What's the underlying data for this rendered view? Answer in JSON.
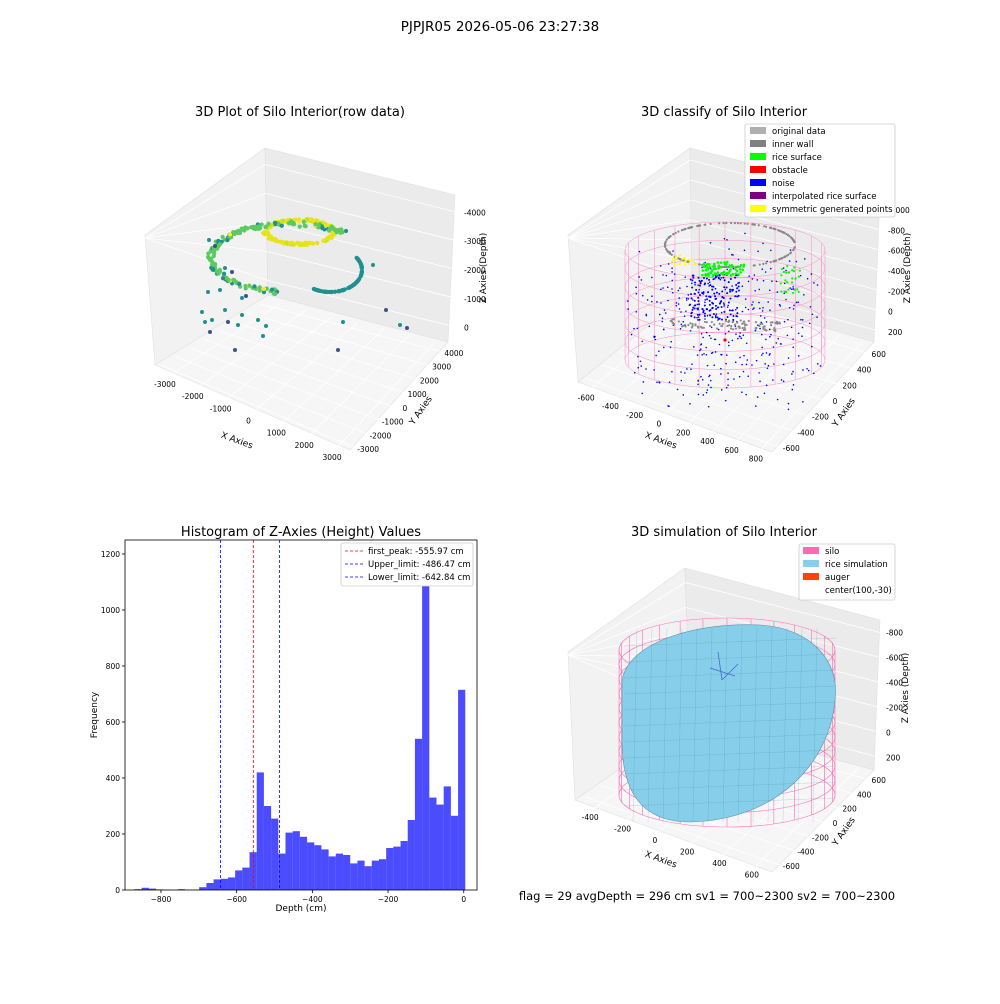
{
  "figure": {
    "suptitle": "PJPJR05 2026-05-06 23:27:38",
    "footer": "flag = 29   avgDepth = 296 cm   sv1 = 700~2300   sv2 = 700~2300"
  },
  "chart_data": [
    {
      "type": "scatter3d",
      "title": "3D Plot of Silo Interior(row data)",
      "xlabel": "X Axies",
      "ylabel": "Y Axies",
      "zlabel": "Z Axies (Depth)",
      "xticks": [
        "-3000",
        "-2000",
        "-1000",
        "0",
        "1000",
        "2000",
        "3000"
      ],
      "yticks": [
        "-3000",
        "-2000",
        "-1000",
        "0",
        "1000",
        "2000",
        "3000",
        "4000"
      ],
      "zticks": [
        "0",
        "-1000",
        "-2000",
        "-3000",
        "-4000"
      ],
      "xlim": [
        -3500,
        3200
      ],
      "ylim": [
        -3500,
        4200
      ],
      "zlim": [
        -4600,
        200
      ],
      "colormap": "viridis",
      "grid": true
    },
    {
      "type": "scatter3d",
      "title": "3D classify of Silo Interior",
      "xlabel": "X Axies",
      "ylabel": "Y Axies",
      "zlabel": "Z Axies (Depth)",
      "xticks": [
        "-600",
        "-400",
        "-200",
        "0",
        "200",
        "400",
        "600",
        "800"
      ],
      "yticks": [
        "-600",
        "-400",
        "-200",
        "0",
        "200",
        "400",
        "600"
      ],
      "zticks": [
        "200",
        "0",
        "-200",
        "-400",
        "-600",
        "-800",
        "-1000"
      ],
      "legend_position": "top-right",
      "legend": [
        {
          "label": "original data",
          "color": "#b0b0b0"
        },
        {
          "label": "inner wall",
          "color": "#808080"
        },
        {
          "label": "rice surface",
          "color": "#00ff00"
        },
        {
          "label": "obstacle",
          "color": "#ff0000"
        },
        {
          "label": "noise",
          "color": "#0000ff"
        },
        {
          "label": "interpolated rice surface",
          "color": "#800080"
        },
        {
          "label": "symmetric generated points",
          "color": "#ffff00"
        }
      ],
      "grid": true
    },
    {
      "type": "bar",
      "title": "Histogram of Z-Axies (Height) Values",
      "xlabel": "Depth (cm)",
      "ylabel": "Frequency",
      "xlim": [
        -895,
        35
      ],
      "ylim": [
        0,
        1250
      ],
      "xticks": [
        -800,
        -600,
        -400,
        -200,
        0
      ],
      "yticks": [
        0,
        200,
        400,
        600,
        800,
        1000,
        1200
      ],
      "bin_width": 19,
      "bins": [
        {
          "x0": -870,
          "v": 3
        },
        {
          "x0": -851,
          "v": 8
        },
        {
          "x0": -832,
          "v": 5
        },
        {
          "x0": -813,
          "v": 2
        },
        {
          "x0": -794,
          "v": 1
        },
        {
          "x0": -775,
          "v": 0
        },
        {
          "x0": -756,
          "v": 3
        },
        {
          "x0": -737,
          "v": 1
        },
        {
          "x0": -718,
          "v": 1
        },
        {
          "x0": -699,
          "v": 10
        },
        {
          "x0": -680,
          "v": 25
        },
        {
          "x0": -661,
          "v": 38
        },
        {
          "x0": -642,
          "v": 40
        },
        {
          "x0": -623,
          "v": 45
        },
        {
          "x0": -604,
          "v": 70
        },
        {
          "x0": -585,
          "v": 80
        },
        {
          "x0": -566,
          "v": 135
        },
        {
          "x0": -547,
          "v": 420
        },
        {
          "x0": -528,
          "v": 300
        },
        {
          "x0": -509,
          "v": 255
        },
        {
          "x0": -490,
          "v": 130
        },
        {
          "x0": -471,
          "v": 205
        },
        {
          "x0": -452,
          "v": 210
        },
        {
          "x0": -433,
          "v": 190
        },
        {
          "x0": -414,
          "v": 170
        },
        {
          "x0": -395,
          "v": 160
        },
        {
          "x0": -376,
          "v": 145
        },
        {
          "x0": -357,
          "v": 120
        },
        {
          "x0": -338,
          "v": 130
        },
        {
          "x0": -319,
          "v": 125
        },
        {
          "x0": -300,
          "v": 95
        },
        {
          "x0": -281,
          "v": 105
        },
        {
          "x0": -262,
          "v": 85
        },
        {
          "x0": -243,
          "v": 105
        },
        {
          "x0": -224,
          "v": 110
        },
        {
          "x0": -205,
          "v": 150
        },
        {
          "x0": -186,
          "v": 155
        },
        {
          "x0": -167,
          "v": 175
        },
        {
          "x0": -148,
          "v": 250
        },
        {
          "x0": -129,
          "v": 540
        },
        {
          "x0": -110,
          "v": 1180
        },
        {
          "x0": -91,
          "v": 330
        },
        {
          "x0": -72,
          "v": 305
        },
        {
          "x0": -53,
          "v": 370
        },
        {
          "x0": -34,
          "v": 265
        },
        {
          "x0": -15,
          "v": 715
        }
      ],
      "bar_color": "#0000ff",
      "vlines": [
        {
          "x": -555.97,
          "color": "#ff0000",
          "label": "first_peak: -555.97 cm"
        },
        {
          "x": -486.47,
          "color": "#0000ff",
          "label": "Upper_limit: -486.47 cm"
        },
        {
          "x": -642.84,
          "color": "#0000ff",
          "label": "Lower_limit: -642.84 cm"
        }
      ],
      "legend_position": "top-right"
    },
    {
      "type": "surface3d",
      "title": "3D simulation of Silo Interior",
      "xlabel": "X Axies",
      "ylabel": "Y Axies",
      "zlabel": "Z Axies (Depth)",
      "xticks": [
        "-400",
        "-200",
        "0",
        "200",
        "400",
        "600"
      ],
      "yticks": [
        "-600",
        "-400",
        "-200",
        "0",
        "200",
        "400",
        "600"
      ],
      "zticks": [
        "200",
        "0",
        "-200",
        "-400",
        "-600",
        "-800"
      ],
      "legend_position": "top-right",
      "legend": [
        {
          "label": "silo",
          "color": "#ff69b4"
        },
        {
          "label": "rice simulation",
          "color": "#87ceeb"
        },
        {
          "label": "auger",
          "color": "#ff4500"
        },
        {
          "label": "center(100,-30)",
          "color": ""
        }
      ],
      "grid": true
    }
  ]
}
